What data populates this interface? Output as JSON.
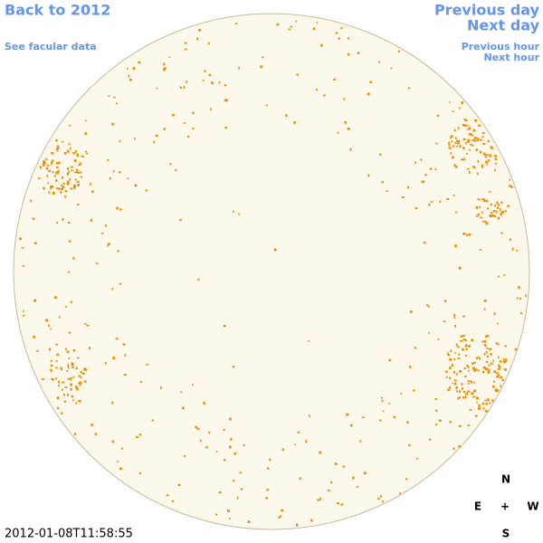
{
  "navigation": {
    "back": "Back to 2012",
    "facular_data": "See facular data",
    "previous_day": "Previous day",
    "next_day": "Next day",
    "previous_hour": "Previous hour",
    "next_hour": "Next hour"
  },
  "timestamp": "2012-01-08T11:58:55",
  "compass": {
    "north": "N",
    "east": "E",
    "center": "+",
    "west": "W",
    "south": "S"
  }
}
